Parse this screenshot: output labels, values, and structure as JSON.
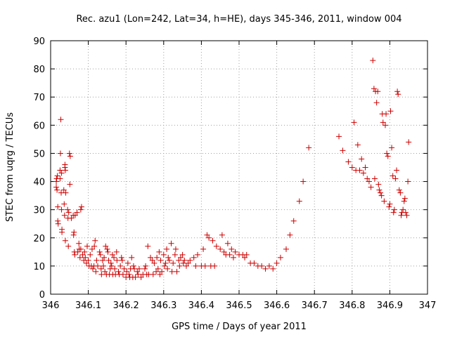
{
  "chart_data": {
    "type": "scatter",
    "title": "Rec. azu1 (Lon=242, Lat=34, h=HE), days 345-346, 2011, window 004",
    "xlabel": "GPS time / Days of year 2011",
    "ylabel": "STEC from uqrg / TECUs",
    "xlim": [
      346,
      347
    ],
    "ylim": [
      0,
      90
    ],
    "x_ticks": [
      "346",
      "346.1",
      "346.2",
      "346.3",
      "346.4",
      "346.5",
      "346.6",
      "346.7",
      "346.8",
      "346.9",
      "347"
    ],
    "y_ticks": [
      "0",
      "10",
      "20",
      "30",
      "40",
      "50",
      "60",
      "70",
      "80",
      "90"
    ],
    "grid": true,
    "marker": "plus",
    "series_color": "#cc0000",
    "points": [
      [
        346.015,
        40
      ],
      [
        346.015,
        38
      ],
      [
        346.016,
        41
      ],
      [
        346.017,
        37
      ],
      [
        346.018,
        42
      ],
      [
        346.019,
        31
      ],
      [
        346.019,
        26
      ],
      [
        346.02,
        25
      ],
      [
        346.025,
        44
      ],
      [
        346.025,
        41
      ],
      [
        346.026,
        50
      ],
      [
        346.027,
        62
      ],
      [
        346.028,
        36
      ],
      [
        346.029,
        43
      ],
      [
        346.029,
        30
      ],
      [
        346.03,
        22
      ],
      [
        346.03,
        23
      ],
      [
        346.035,
        37
      ],
      [
        346.036,
        32
      ],
      [
        346.037,
        28
      ],
      [
        346.038,
        46
      ],
      [
        346.038,
        45
      ],
      [
        346.039,
        44
      ],
      [
        346.039,
        19
      ],
      [
        346.04,
        36
      ],
      [
        346.045,
        30
      ],
      [
        346.046,
        27
      ],
      [
        346.047,
        17
      ],
      [
        346.048,
        29
      ],
      [
        346.05,
        50
      ],
      [
        346.051,
        39
      ],
      [
        346.052,
        49
      ],
      [
        346.055,
        27
      ],
      [
        346.06,
        28
      ],
      [
        346.061,
        21
      ],
      [
        346.062,
        22
      ],
      [
        346.063,
        15
      ],
      [
        346.064,
        14
      ],
      [
        346.065,
        28
      ],
      [
        346.07,
        29
      ],
      [
        346.072,
        15
      ],
      [
        346.075,
        18
      ],
      [
        346.076,
        16
      ],
      [
        346.078,
        13
      ],
      [
        346.08,
        16
      ],
      [
        346.08,
        30
      ],
      [
        346.082,
        31
      ],
      [
        346.085,
        14
      ],
      [
        346.088,
        12
      ],
      [
        346.09,
        15
      ],
      [
        346.092,
        13
      ],
      [
        346.095,
        11
      ],
      [
        346.097,
        17
      ],
      [
        346.1,
        12
      ],
      [
        346.102,
        10
      ],
      [
        346.105,
        14
      ],
      [
        346.108,
        10
      ],
      [
        346.11,
        16
      ],
      [
        346.112,
        9
      ],
      [
        346.115,
        10
      ],
      [
        346.116,
        17
      ],
      [
        346.118,
        19
      ],
      [
        346.12,
        8
      ],
      [
        346.122,
        12
      ],
      [
        346.125,
        10
      ],
      [
        346.13,
        15
      ],
      [
        346.132,
        14
      ],
      [
        346.134,
        9
      ],
      [
        346.135,
        7
      ],
      [
        346.138,
        12
      ],
      [
        346.14,
        10
      ],
      [
        346.142,
        13
      ],
      [
        346.144,
        8
      ],
      [
        346.146,
        17
      ],
      [
        346.148,
        7
      ],
      [
        346.15,
        16
      ],
      [
        346.152,
        15
      ],
      [
        346.154,
        12
      ],
      [
        346.156,
        7
      ],
      [
        346.158,
        9
      ],
      [
        346.16,
        11
      ],
      [
        346.162,
        10
      ],
      [
        346.164,
        14
      ],
      [
        346.165,
        7
      ],
      [
        346.168,
        13
      ],
      [
        346.17,
        9
      ],
      [
        346.172,
        7
      ],
      [
        346.175,
        15
      ],
      [
        346.176,
        12
      ],
      [
        346.18,
        8
      ],
      [
        346.182,
        7
      ],
      [
        346.185,
        10
      ],
      [
        346.188,
        13
      ],
      [
        346.19,
        12
      ],
      [
        346.192,
        7
      ],
      [
        346.195,
        9
      ],
      [
        346.2,
        6
      ],
      [
        346.202,
        8
      ],
      [
        346.205,
        11
      ],
      [
        346.208,
        7
      ],
      [
        346.21,
        6
      ],
      [
        346.212,
        9
      ],
      [
        346.215,
        13
      ],
      [
        346.218,
        6
      ],
      [
        346.22,
        10
      ],
      [
        346.222,
        9
      ],
      [
        346.225,
        6
      ],
      [
        346.23,
        8
      ],
      [
        346.232,
        7
      ],
      [
        346.235,
        9
      ],
      [
        346.24,
        6
      ],
      [
        346.245,
        7
      ],
      [
        346.25,
        9
      ],
      [
        346.252,
        10
      ],
      [
        346.255,
        7
      ],
      [
        346.258,
        17
      ],
      [
        346.26,
        7
      ],
      [
        346.265,
        13
      ],
      [
        346.27,
        12
      ],
      [
        346.272,
        7
      ],
      [
        346.275,
        11
      ],
      [
        346.28,
        8
      ],
      [
        346.282,
        13
      ],
      [
        346.285,
        9
      ],
      [
        346.288,
        15
      ],
      [
        346.29,
        7
      ],
      [
        346.292,
        12
      ],
      [
        346.295,
        8
      ],
      [
        346.3,
        14
      ],
      [
        346.302,
        10
      ],
      [
        346.305,
        11
      ],
      [
        346.308,
        16
      ],
      [
        346.31,
        9
      ],
      [
        346.312,
        13
      ],
      [
        346.315,
        12
      ],
      [
        346.32,
        18
      ],
      [
        346.322,
        8
      ],
      [
        346.325,
        11
      ],
      [
        346.33,
        14
      ],
      [
        346.332,
        16
      ],
      [
        346.335,
        8
      ],
      [
        346.34,
        12
      ],
      [
        346.342,
        10
      ],
      [
        346.345,
        13
      ],
      [
        346.35,
        14
      ],
      [
        346.352,
        11
      ],
      [
        346.355,
        12
      ],
      [
        346.36,
        10
      ],
      [
        346.365,
        11
      ],
      [
        346.37,
        12
      ],
      [
        346.38,
        13
      ],
      [
        346.385,
        10
      ],
      [
        346.39,
        14
      ],
      [
        346.4,
        10
      ],
      [
        346.405,
        16
      ],
      [
        346.41,
        10
      ],
      [
        346.415,
        21
      ],
      [
        346.42,
        20
      ],
      [
        346.425,
        10
      ],
      [
        346.43,
        19
      ],
      [
        346.435,
        10
      ],
      [
        346.44,
        17
      ],
      [
        346.45,
        16
      ],
      [
        346.455,
        21
      ],
      [
        346.46,
        15
      ],
      [
        346.465,
        14
      ],
      [
        346.47,
        18
      ],
      [
        346.475,
        14
      ],
      [
        346.48,
        16
      ],
      [
        346.485,
        13
      ],
      [
        346.49,
        15
      ],
      [
        346.5,
        14
      ],
      [
        346.51,
        14
      ],
      [
        346.515,
        13
      ],
      [
        346.52,
        14
      ],
      [
        346.53,
        11
      ],
      [
        346.54,
        11
      ],
      [
        346.55,
        10
      ],
      [
        346.56,
        10
      ],
      [
        346.57,
        9
      ],
      [
        346.58,
        10
      ],
      [
        346.59,
        9
      ],
      [
        346.6,
        11
      ],
      [
        346.61,
        13
      ],
      [
        346.625,
        16
      ],
      [
        346.635,
        21
      ],
      [
        346.645,
        26
      ],
      [
        346.66,
        33
      ],
      [
        346.67,
        40
      ],
      [
        346.685,
        52
      ],
      [
        346.765,
        56
      ],
      [
        346.775,
        51
      ],
      [
        346.79,
        47
      ],
      [
        346.8,
        45
      ],
      [
        346.805,
        61
      ],
      [
        346.81,
        44
      ],
      [
        346.815,
        53
      ],
      [
        346.82,
        44
      ],
      [
        346.825,
        48
      ],
      [
        346.83,
        43
      ],
      [
        346.835,
        45
      ],
      [
        346.84,
        41
      ],
      [
        346.845,
        40
      ],
      [
        346.85,
        38
      ],
      [
        346.855,
        83
      ],
      [
        346.858,
        73
      ],
      [
        346.86,
        41
      ],
      [
        346.862,
        72
      ],
      [
        346.865,
        68
      ],
      [
        346.868,
        72
      ],
      [
        346.87,
        39
      ],
      [
        346.872,
        37
      ],
      [
        346.875,
        36
      ],
      [
        346.878,
        35
      ],
      [
        346.88,
        64
      ],
      [
        346.882,
        61
      ],
      [
        346.885,
        33
      ],
      [
        346.888,
        60
      ],
      [
        346.89,
        64
      ],
      [
        346.892,
        50
      ],
      [
        346.895,
        49
      ],
      [
        346.898,
        31
      ],
      [
        346.9,
        32
      ],
      [
        346.902,
        65
      ],
      [
        346.905,
        52
      ],
      [
        346.908,
        42
      ],
      [
        346.91,
        29
      ],
      [
        346.912,
        30
      ],
      [
        346.915,
        41
      ],
      [
        346.918,
        44
      ],
      [
        346.92,
        72
      ],
      [
        346.922,
        71
      ],
      [
        346.925,
        37
      ],
      [
        346.928,
        36
      ],
      [
        346.93,
        28
      ],
      [
        346.932,
        29
      ],
      [
        346.935,
        30
      ],
      [
        346.938,
        33
      ],
      [
        346.94,
        34
      ],
      [
        346.942,
        29
      ],
      [
        346.945,
        28
      ],
      [
        346.948,
        40
      ],
      [
        346.95,
        54
      ]
    ]
  }
}
